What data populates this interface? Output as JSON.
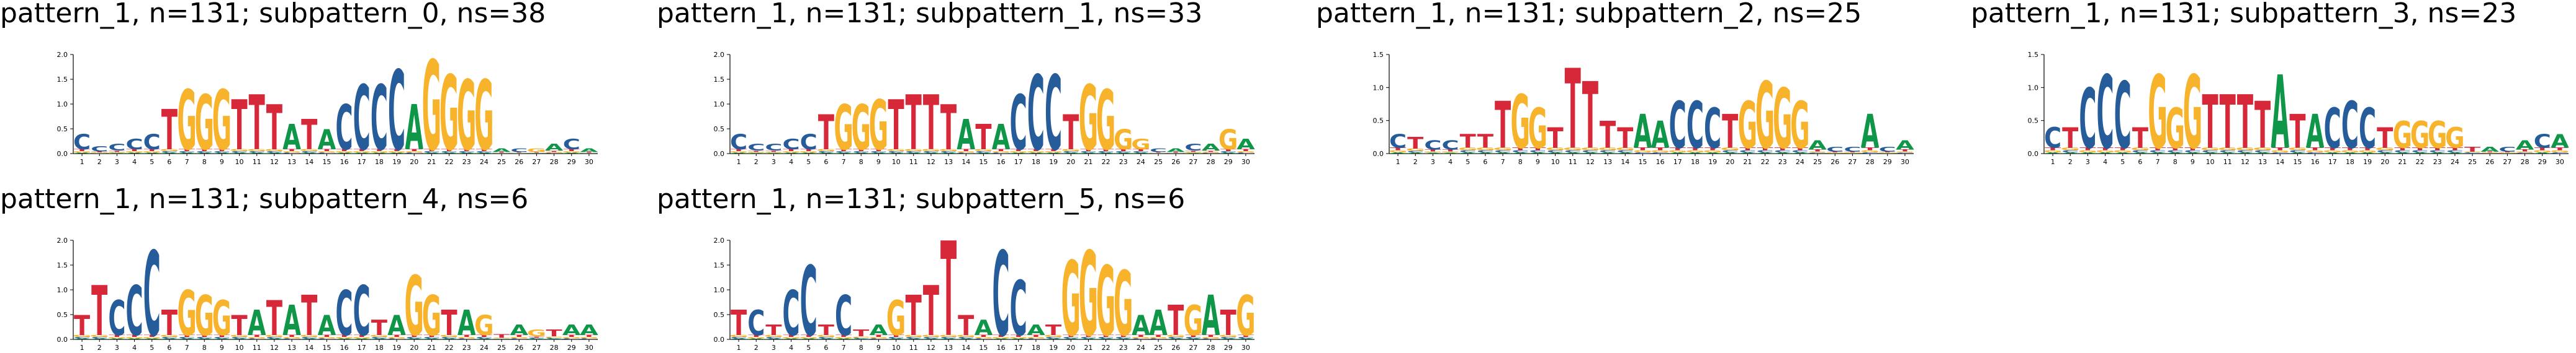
{
  "colors": {
    "A": "#109648",
    "C": "#255C99",
    "G": "#F7B32B",
    "T": "#D62839"
  },
  "chart_data": [
    {
      "type": "sequence-logo",
      "title": "pattern_1, n=131; subpattern_0, ns=38",
      "ylim": [
        0,
        2.0
      ],
      "yticks": [
        "0.0",
        "0.5",
        "1.0",
        "1.5",
        "2.0"
      ],
      "positions": [
        "1",
        "2",
        "3",
        "4",
        "5",
        "6",
        "7",
        "8",
        "9",
        "10",
        "11",
        "12",
        "13",
        "14",
        "15",
        "16",
        "17",
        "18",
        "19",
        "20",
        "21",
        "22",
        "23",
        "24",
        "25",
        "26",
        "27",
        "28",
        "29",
        "30"
      ],
      "dominant": [
        "C",
        "C",
        "C",
        "C",
        "C",
        "T",
        "G",
        "G",
        "G",
        "T",
        "T",
        "T",
        "A",
        "T",
        "A",
        "C",
        "C",
        "C",
        "C",
        "A",
        "G",
        "G",
        "G",
        "G",
        "A",
        "C",
        "G",
        "A",
        "C",
        "A"
      ],
      "heights": [
        0.4,
        0.15,
        0.2,
        0.3,
        0.4,
        0.9,
        1.3,
        1.2,
        1.3,
        1.1,
        1.2,
        1.0,
        0.6,
        0.7,
        0.5,
        1.0,
        1.4,
        1.4,
        1.7,
        1.0,
        1.9,
        1.6,
        1.5,
        1.5,
        0.1,
        0.1,
        0.1,
        0.2,
        0.3,
        0.1
      ]
    },
    {
      "type": "sequence-logo",
      "title": "pattern_1, n=131; subpattern_1, ns=33",
      "ylim": [
        0,
        2.0
      ],
      "yticks": [
        "0.0",
        "0.5",
        "1.0",
        "1.5",
        "2.0"
      ],
      "positions": [
        "1",
        "2",
        "3",
        "4",
        "5",
        "6",
        "7",
        "8",
        "9",
        "10",
        "11",
        "12",
        "13",
        "14",
        "15",
        "16",
        "17",
        "18",
        "19",
        "20",
        "21",
        "22",
        "23",
        "24",
        "25",
        "26",
        "27",
        "28",
        "29",
        "30"
      ],
      "dominant": [
        "C",
        "C",
        "C",
        "C",
        "C",
        "T",
        "G",
        "G",
        "G",
        "T",
        "T",
        "T",
        "T",
        "A",
        "T",
        "A",
        "C",
        "C",
        "C",
        "T",
        "G",
        "G",
        "G",
        "G",
        "C",
        "A",
        "C",
        "A",
        "G",
        "A"
      ],
      "heights": [
        0.4,
        0.2,
        0.2,
        0.3,
        0.4,
        0.8,
        1.0,
        1.0,
        1.1,
        1.1,
        1.2,
        1.2,
        1.0,
        0.7,
        0.6,
        0.6,
        1.2,
        1.6,
        1.6,
        0.8,
        1.4,
        1.3,
        0.5,
        0.3,
        0.1,
        0.1,
        0.2,
        0.2,
        0.5,
        0.3
      ]
    },
    {
      "type": "sequence-logo",
      "title": "pattern_1, n=131; subpattern_2, ns=25",
      "ylim": [
        0,
        1.5
      ],
      "yticks": [
        "0.0",
        "0.5",
        "1.0",
        "1.5"
      ],
      "positions": [
        "1",
        "2",
        "3",
        "4",
        "5",
        "6",
        "7",
        "8",
        "9",
        "10",
        "11",
        "12",
        "13",
        "14",
        "15",
        "16",
        "17",
        "18",
        "19",
        "20",
        "21",
        "22",
        "23",
        "24",
        "25",
        "26",
        "27",
        "28",
        "29",
        "30"
      ],
      "dominant": [
        "C",
        "T",
        "C",
        "C",
        "T",
        "T",
        "T",
        "G",
        "G",
        "T",
        "T",
        "T",
        "T",
        "T",
        "A",
        "A",
        "C",
        "C",
        "C",
        "T",
        "G",
        "G",
        "G",
        "G",
        "A",
        "C",
        "C",
        "A",
        "C",
        "A"
      ],
      "heights": [
        0.3,
        0.25,
        0.2,
        0.2,
        0.3,
        0.3,
        0.8,
        0.9,
        0.7,
        0.4,
        1.3,
        1.1,
        0.5,
        0.4,
        0.6,
        0.5,
        0.8,
        0.8,
        0.7,
        0.6,
        0.8,
        1.1,
        1.0,
        0.8,
        0.2,
        0.1,
        0.1,
        0.6,
        0.1,
        0.2
      ]
    },
    {
      "type": "sequence-logo",
      "title": "pattern_1, n=131; subpattern_3, ns=23",
      "ylim": [
        0,
        1.5
      ],
      "yticks": [
        "0.0",
        "0.5",
        "1.0",
        "1.5"
      ],
      "positions": [
        "1",
        "2",
        "3",
        "4",
        "5",
        "6",
        "7",
        "8",
        "9",
        "10",
        "11",
        "12",
        "13",
        "14",
        "15",
        "16",
        "17",
        "18",
        "19",
        "20",
        "21",
        "22",
        "23",
        "24",
        "25",
        "26",
        "27",
        "28",
        "29",
        "30"
      ],
      "dominant": [
        "C",
        "T",
        "C",
        "C",
        "C",
        "T",
        "G",
        "G",
        "G",
        "T",
        "T",
        "T",
        "T",
        "A",
        "T",
        "A",
        "C",
        "C",
        "C",
        "T",
        "G",
        "G",
        "G",
        "G",
        "T",
        "A",
        "C",
        "A",
        "C",
        "A"
      ],
      "heights": [
        0.4,
        0.4,
        1.0,
        1.2,
        1.1,
        0.4,
        1.2,
        0.7,
        1.2,
        0.9,
        0.9,
        0.9,
        0.8,
        1.2,
        0.6,
        0.6,
        0.7,
        0.8,
        0.7,
        0.4,
        0.5,
        0.5,
        0.5,
        0.4,
        0.1,
        0.1,
        0.1,
        0.2,
        0.3,
        0.3
      ]
    },
    {
      "type": "sequence-logo",
      "title": "pattern_1, n=131; subpattern_4, ns=6",
      "ylim": [
        0,
        2.0
      ],
      "yticks": [
        "0.0",
        "0.5",
        "1.0",
        "1.5",
        "2.0"
      ],
      "positions": [
        "1",
        "2",
        "3",
        "4",
        "5",
        "6",
        "7",
        "8",
        "9",
        "10",
        "11",
        "12",
        "13",
        "14",
        "15",
        "16",
        "17",
        "18",
        "19",
        "20",
        "21",
        "22",
        "23",
        "24",
        "25",
        "26",
        "27",
        "28",
        "29",
        "30"
      ],
      "dominant": [
        "T",
        "T",
        "C",
        "C",
        "C",
        "T",
        "G",
        "G",
        "G",
        "T",
        "A",
        "T",
        "A",
        "T",
        "A",
        "C",
        "C",
        "T",
        "A",
        "G",
        "G",
        "T",
        "A",
        "G",
        "T",
        "A",
        "G",
        "T",
        "A",
        "A"
      ],
      "heights": [
        0.5,
        1.1,
        0.8,
        1.1,
        1.8,
        0.6,
        1.0,
        0.9,
        0.8,
        0.5,
        0.6,
        0.8,
        0.7,
        0.9,
        0.5,
        1.0,
        1.1,
        0.4,
        0.5,
        1.3,
        0.9,
        0.6,
        0.6,
        0.5,
        0.1,
        0.3,
        0.2,
        0.2,
        0.3,
        0.3
      ]
    },
    {
      "type": "sequence-logo",
      "title": "pattern_1, n=131; subpattern_5, ns=6",
      "ylim": [
        0,
        2.0
      ],
      "yticks": [
        "0.0",
        "0.5",
        "1.0",
        "1.5",
        "2.0"
      ],
      "positions": [
        "1",
        "2",
        "3",
        "4",
        "5",
        "6",
        "7",
        "8",
        "9",
        "10",
        "11",
        "12",
        "13",
        "14",
        "15",
        "16",
        "17",
        "18",
        "19",
        "20",
        "21",
        "22",
        "23",
        "24",
        "25",
        "26",
        "27",
        "28",
        "29",
        "30"
      ],
      "dominant": [
        "T",
        "C",
        "T",
        "C",
        "C",
        "T",
        "C",
        "T",
        "A",
        "G",
        "T",
        "T",
        "T",
        "T",
        "A",
        "C",
        "C",
        "A",
        "T",
        "G",
        "G",
        "G",
        "G",
        "A",
        "A",
        "T",
        "G",
        "A",
        "T",
        "G"
      ],
      "heights": [
        0.6,
        0.6,
        0.3,
        1.0,
        1.5,
        0.3,
        0.9,
        0.2,
        0.3,
        0.8,
        0.9,
        1.1,
        2.0,
        0.5,
        0.4,
        1.8,
        1.2,
        0.3,
        0.3,
        1.6,
        1.8,
        1.5,
        1.4,
        0.5,
        0.6,
        0.7,
        0.7,
        0.9,
        0.6,
        0.9
      ]
    }
  ]
}
